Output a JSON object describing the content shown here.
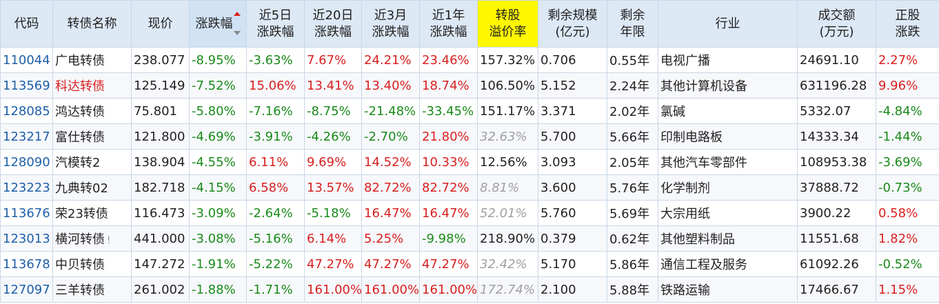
{
  "headers": {
    "code": "代码",
    "name": "转债名称",
    "price": "现价",
    "change": "涨跌幅",
    "d5": [
      "近5日",
      "涨跌幅"
    ],
    "d20": [
      "近20日",
      "涨跌幅"
    ],
    "m3": [
      "近3月",
      "涨跌幅"
    ],
    "y1": [
      "近1年",
      "涨跌幅"
    ],
    "premium": [
      "转股",
      "溢价率"
    ],
    "scale": [
      "剩余规模",
      "(亿元)"
    ],
    "years": [
      "剩余",
      "年限"
    ],
    "industry": "行业",
    "volume": [
      "成交额",
      "(万元)"
    ],
    "stock_change": [
      "正股",
      "涨跌"
    ]
  },
  "highlight_color": "#fff700",
  "rows": [
    {
      "code": "110044",
      "name": "广电转债",
      "price": "238.077",
      "change": "-8.95%",
      "d5": "-3.63%",
      "d20": "7.67%",
      "m3": "24.21%",
      "y1": "23.46%",
      "premium": "157.32%",
      "scale": "0.706",
      "years": "0.55年",
      "industry": "电视广播",
      "volume": "24691.10",
      "stock_change": "2.27%"
    },
    {
      "code": "113569",
      "name": "科达转债",
      "price": "125.149",
      "change": "-7.52%",
      "d5": "15.06%",
      "d20": "13.41%",
      "m3": "13.40%",
      "y1": "18.74%",
      "premium": "106.50%",
      "scale": "5.152",
      "years": "2.24年",
      "industry": "其他计算机设备",
      "volume": "631196.28",
      "stock_change": "9.96%"
    },
    {
      "code": "128085",
      "name": "鸿达转债",
      "price": "75.801",
      "change": "-5.80%",
      "d5": "-7.16%",
      "d20": "-8.75%",
      "m3": "-21.48%",
      "y1": "-33.45%",
      "premium": "151.17%",
      "scale": "3.371",
      "years": "2.02年",
      "industry": "氯碱",
      "volume": "5332.07",
      "stock_change": "-4.84%"
    },
    {
      "code": "123217",
      "name": "富仕转债",
      "price": "121.800",
      "change": "-4.69%",
      "d5": "-3.91%",
      "d20": "-4.26%",
      "m3": "-2.70%",
      "y1": "21.80%",
      "premium": "32.63%",
      "scale": "5.700",
      "years": "5.66年",
      "industry": "印制电路板",
      "volume": "14333.34",
      "stock_change": "-1.44%"
    },
    {
      "code": "128090",
      "name": "汽模转2",
      "price": "138.904",
      "change": "-4.55%",
      "d5": "6.11%",
      "d20": "9.69%",
      "m3": "14.52%",
      "y1": "10.33%",
      "premium": "12.56%",
      "scale": "3.093",
      "years": "2.05年",
      "industry": "其他汽车零部件",
      "volume": "108953.38",
      "stock_change": "-3.69%"
    },
    {
      "code": "123223",
      "name": "九典转02",
      "price": "182.718",
      "change": "-4.15%",
      "d5": "6.58%",
      "d20": "13.57%",
      "m3": "82.72%",
      "y1": "82.72%",
      "premium": "8.81%",
      "scale": "3.600",
      "years": "5.76年",
      "industry": "化学制剂",
      "volume": "37888.72",
      "stock_change": "-0.73%"
    },
    {
      "code": "113676",
      "name": "荣23转债",
      "price": "116.473",
      "change": "-3.09%",
      "d5": "-2.64%",
      "d20": "-5.18%",
      "m3": "16.47%",
      "y1": "16.47%",
      "premium": "52.01%",
      "scale": "5.760",
      "years": "5.69年",
      "industry": "大宗用纸",
      "volume": "3900.22",
      "stock_change": "0.58%"
    },
    {
      "code": "123013",
      "name": "横河转债",
      "name_mark": "!",
      "price": "441.000",
      "change": "-3.08%",
      "d5": "-5.16%",
      "d20": "6.14%",
      "m3": "5.25%",
      "y1": "-9.98%",
      "premium": "218.90%",
      "scale": "0.379",
      "years": "0.62年",
      "industry": "其他塑料制品",
      "volume": "11551.68",
      "stock_change": "1.82%"
    },
    {
      "code": "113678",
      "name": "中贝转债",
      "price": "147.272",
      "change": "-1.91%",
      "d5": "-5.22%",
      "d20": "47.27%",
      "m3": "47.27%",
      "y1": "47.27%",
      "premium": "32.42%",
      "scale": "5.170",
      "years": "5.86年",
      "industry": "通信工程及服务",
      "volume": "61092.26",
      "stock_change": "-0.52%"
    },
    {
      "code": "127097",
      "name": "三羊转债",
      "price": "261.002",
      "change": "-1.88%",
      "d5": "-1.71%",
      "d20": "161.00%",
      "m3": "161.00%",
      "y1": "161.00%",
      "premium": "172.74%",
      "scale": "2.100",
      "years": "5.88年",
      "industry": "铁路运输",
      "volume": "17466.67",
      "stock_change": "1.15%"
    }
  ],
  "italic_premium_rows": [
    3,
    5,
    6,
    8,
    9
  ],
  "red_name_rows": [
    1
  ]
}
